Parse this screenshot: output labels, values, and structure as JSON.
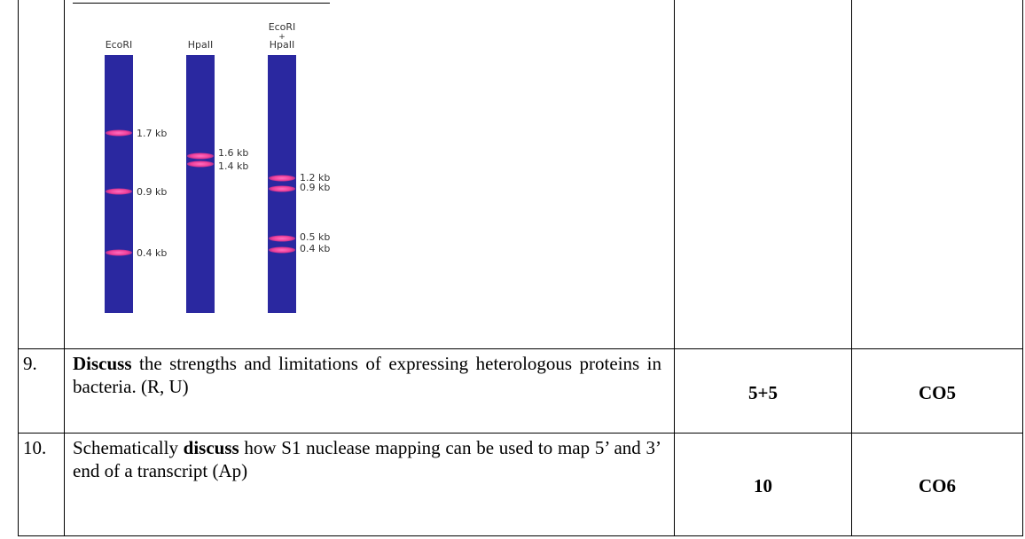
{
  "gel": {
    "lanes": [
      {
        "label_lines": [
          "EcoRI"
        ],
        "bands": [
          "1.7 kb",
          "0.9 kb",
          "0.4 kb"
        ]
      },
      {
        "label_lines": [
          "HpaII"
        ],
        "bands": [
          "1.6 kb",
          "1.4 kb"
        ]
      },
      {
        "label_lines": [
          "EcoRI",
          "+",
          "HpaII"
        ],
        "bands": [
          "1.2 kb",
          "0.9 kb",
          "0.5 kb",
          "0.4 kb"
        ]
      }
    ]
  },
  "rows": [
    {
      "number": "9.",
      "question": [
        {
          "text": "Discuss",
          "bold": true
        },
        {
          "text": " the strengths and limitations of expressing heterologous proteins in bacteria. (R, U)",
          "bold": false
        }
      ],
      "marks": "5+5",
      "co": "CO5"
    },
    {
      "number": "10.",
      "question": [
        {
          "text": "Schematically ",
          "bold": false
        },
        {
          "text": "discuss",
          "bold": true
        },
        {
          "text": " how S1 nuclease mapping can be used to map 5’ and 3’ end of a transcript (Ap)",
          "bold": false
        }
      ],
      "marks": "10",
      "co": "CO6"
    }
  ]
}
